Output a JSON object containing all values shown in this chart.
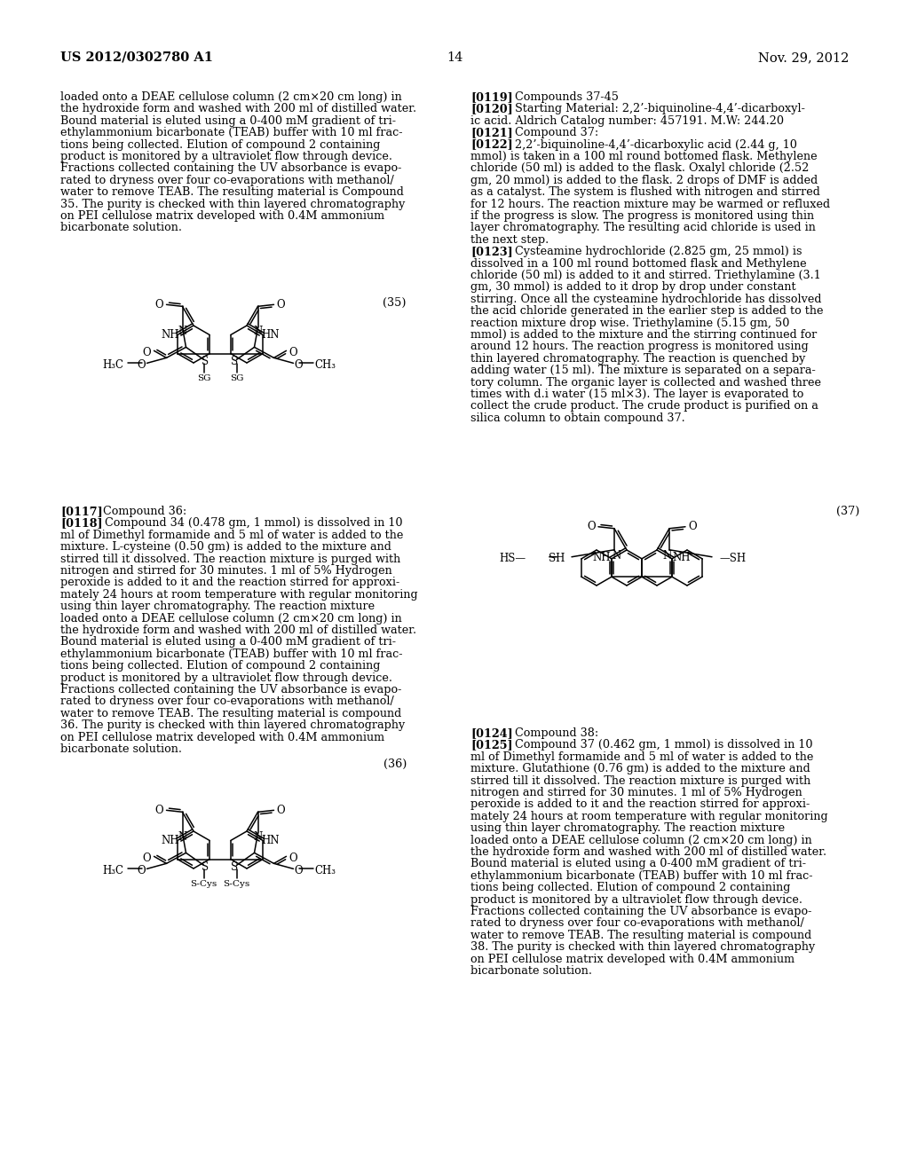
{
  "page_header_left": "US 2012/0302780 A1",
  "page_header_right": "Nov. 29, 2012",
  "page_number": "14",
  "background_color": "#ffffff",
  "left_column_text": [
    "loaded onto a DEAE cellulose column (2 cm×20 cm long) in",
    "the hydroxide form and washed with 200 ml of distilled water.",
    "Bound material is eluted using a 0-400 mM gradient of tri-",
    "ethylammonium bicarbonate (TEAB) buffer with 10 ml frac-",
    "tions being collected. Elution of compound 2 containing",
    "product is monitored by a ultraviolet flow through device.",
    "Fractions collected containing the UV absorbance is evapo-",
    "rated to dryness over four co-evaporations with methanol/",
    "water to remove TEAB. The resulting material is Compound",
    "35. The purity is checked with thin layered chromatography",
    "on PEI cellulose matrix developed with 0.4M ammonium",
    "bicarbonate solution."
  ],
  "compound_35_label": "(35)",
  "left_para_0117_bold": "[0117]",
  "left_para_0117_normal": "   Compound 36:",
  "left_column_text2": [
    "[0118]   Compound 34 (0.478 gm, 1 mmol) is dissolved in 10",
    "ml of Dimethyl formamide and 5 ml of water is added to the",
    "mixture. L-cysteine (0.50 gm) is added to the mixture and",
    "stirred till it dissolved. The reaction mixture is purged with",
    "nitrogen and stirred for 30 minutes. 1 ml of 5% Hydrogen",
    "peroxide is added to it and the reaction stirred for approxi-",
    "mately 24 hours at room temperature with regular monitoring",
    "using thin layer chromatography. The reaction mixture",
    "loaded onto a DEAE cellulose column (2 cm×20 cm long) in",
    "the hydroxide form and washed with 200 ml of distilled water.",
    "Bound material is eluted using a 0-400 mM gradient of tri-",
    "ethylammonium bicarbonate (TEAB) buffer with 10 ml frac-",
    "tions being collected. Elution of compound 2 containing",
    "product is monitored by a ultraviolet flow through device.",
    "Fractions collected containing the UV absorbance is evapo-",
    "rated to dryness over four co-evaporations with methanol/",
    "water to remove TEAB. The resulting material is compound",
    "36. The purity is checked with thin layered chromatography",
    "on PEI cellulose matrix developed with 0.4M ammonium",
    "bicarbonate solution."
  ],
  "compound_36_label": "(36)",
  "right_col_paras": [
    {
      "bold": "[0119]",
      "normal": "   Compounds 37-45"
    },
    {
      "bold": "[0120]",
      "normal": "   Starting Material: 2,2’-biquinoline-4,4’-dicarboxyl-"
    },
    {
      "bold": "",
      "normal": "ic acid. Aldrich Catalog number: 457191. M.W: 244.20"
    },
    {
      "bold": "[0121]",
      "normal": "   Compound 37:"
    },
    {
      "bold": "[0122]",
      "normal": "   2,2’-biquinoline-4,4’-dicarboxylic acid (2.44 g, 10"
    },
    {
      "bold": "",
      "normal": "mmol) is taken in a 100 ml round bottomed flask. Methylene"
    },
    {
      "bold": "",
      "normal": "chloride (50 ml) is added to the flask. Oxalyl chloride (2.52"
    },
    {
      "bold": "",
      "normal": "gm, 20 mmol) is added to the flask. 2 drops of DMF is added"
    },
    {
      "bold": "",
      "normal": "as a catalyst. The system is flushed with nitrogen and stirred"
    },
    {
      "bold": "",
      "normal": "for 12 hours. The reaction mixture may be warmed or refluxed"
    },
    {
      "bold": "",
      "normal": "if the progress is slow. The progress is monitored using thin"
    },
    {
      "bold": "",
      "normal": "layer chromatography. The resulting acid chloride is used in"
    },
    {
      "bold": "",
      "normal": "the next step."
    },
    {
      "bold": "[0123]",
      "normal": "   Cysteamine hydrochloride (2.825 gm, 25 mmol) is"
    },
    {
      "bold": "",
      "normal": "dissolved in a 100 ml round bottomed flask and Methylene"
    },
    {
      "bold": "",
      "normal": "chloride (50 ml) is added to it and stirred. Triethylamine (3.1"
    },
    {
      "bold": "",
      "normal": "gm, 30 mmol) is added to it drop by drop under constant"
    },
    {
      "bold": "",
      "normal": "stirring. Once all the cysteamine hydrochloride has dissolved"
    },
    {
      "bold": "",
      "normal": "the acid chloride generated in the earlier step is added to the"
    },
    {
      "bold": "",
      "normal": "reaction mixture drop wise. Triethylamine (5.15 gm, 50"
    },
    {
      "bold": "",
      "normal": "mmol) is added to the mixture and the stirring continued for"
    },
    {
      "bold": "",
      "normal": "around 12 hours. The reaction progress is monitored using"
    },
    {
      "bold": "",
      "normal": "thin layered chromatography. The reaction is quenched by"
    },
    {
      "bold": "",
      "normal": "adding water (15 ml). The mixture is separated on a separa-"
    },
    {
      "bold": "",
      "normal": "tory column. The organic layer is collected and washed three"
    },
    {
      "bold": "",
      "normal": "times with d.i water (15 ml×3). The layer is evaporated to"
    },
    {
      "bold": "",
      "normal": "collect the crude product. The crude product is purified on a"
    },
    {
      "bold": "",
      "normal": "silica column to obtain compound 37."
    }
  ],
  "compound_37_label": "(37)",
  "right_para_0124_bold": "[0124]",
  "right_para_0124_normal": "   Compound 38:",
  "right_column_text2": [
    "[0125]   Compound 37 (0.462 gm, 1 mmol) is dissolved in 10",
    "ml of Dimethyl formamide and 5 ml of water is added to the",
    "mixture. Glutathione (0.76 gm) is added to the mixture and",
    "stirred till it dissolved. The reaction mixture is purged with",
    "nitrogen and stirred for 30 minutes. 1 ml of 5% Hydrogen",
    "peroxide is added to it and the reaction stirred for approxi-",
    "mately 24 hours at room temperature with regular monitoring",
    "using thin layer chromatography. The reaction mixture",
    "loaded onto a DEAE cellulose column (2 cm×20 cm long) in",
    "the hydroxide form and washed with 200 ml of distilled water.",
    "Bound material is eluted using a 0-400 mM gradient of tri-",
    "ethylammonium bicarbonate (TEAB) buffer with 10 ml frac-",
    "tions being collected. Elution of compound 2 containing",
    "product is monitored by a ultraviolet flow through device.",
    "Fractions collected containing the UV absorbance is evapo-",
    "rated to dryness over four co-evaporations with methanol/",
    "water to remove TEAB. The resulting material is compound",
    "38. The purity is checked with thin layered chromatography",
    "on PEI cellulose matrix developed with 0.4M ammonium",
    "bicarbonate solution."
  ]
}
